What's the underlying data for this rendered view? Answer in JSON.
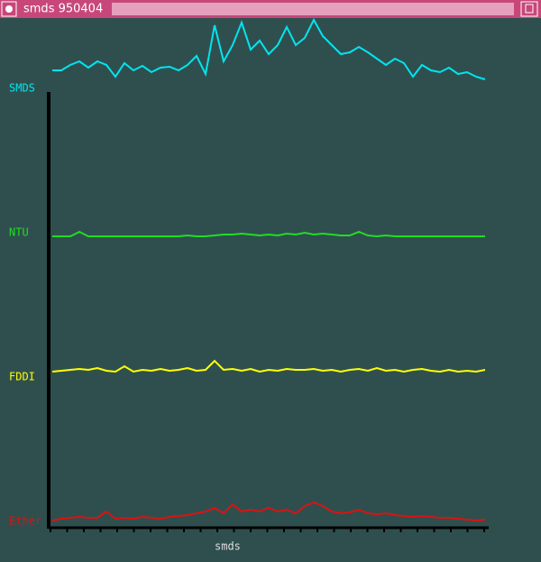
{
  "window": {
    "title": "smds 950404"
  },
  "chart_data": {
    "type": "line",
    "xlabel": "smds",
    "series": [
      {
        "name": "SMDS",
        "color": "#00e5ee",
        "values": [
          4,
          4,
          10,
          14,
          7,
          14,
          10,
          -3,
          12,
          4,
          9,
          2,
          7,
          8,
          4,
          10,
          20,
          0,
          54,
          14,
          32,
          57,
          27,
          37,
          22,
          32,
          52,
          32,
          40,
          60,
          42,
          32,
          22,
          24,
          30,
          24,
          17,
          10,
          17,
          12,
          -3,
          10,
          4,
          2,
          7,
          0,
          2,
          -3,
          -6
        ]
      },
      {
        "name": "NTU",
        "color": "#22dd22",
        "values": [
          0,
          0,
          0,
          5,
          0,
          0,
          0,
          0,
          0,
          0,
          0,
          0,
          0,
          0,
          0,
          1,
          0,
          0,
          1,
          2,
          2,
          3,
          2,
          1,
          2,
          1,
          3,
          2,
          4,
          2,
          3,
          2,
          1,
          1,
          5,
          1,
          0,
          1,
          0,
          0,
          0,
          0,
          0,
          0,
          0,
          0,
          0,
          0,
          0
        ]
      },
      {
        "name": "FDDI",
        "color": "#ffff00",
        "values": [
          0,
          1,
          2,
          3,
          2,
          4,
          1,
          0,
          6,
          0,
          2,
          1,
          3,
          1,
          2,
          4,
          1,
          2,
          12,
          2,
          3,
          1,
          3,
          0,
          2,
          1,
          3,
          2,
          2,
          3,
          1,
          2,
          0,
          2,
          3,
          1,
          4,
          1,
          2,
          0,
          2,
          3,
          1,
          0,
          2,
          0,
          1,
          0,
          2
        ]
      },
      {
        "name": "Ether",
        "color": "#dd1111",
        "values": [
          0,
          2,
          3,
          4,
          3,
          3,
          10,
          2,
          3,
          2,
          4,
          3,
          2,
          4,
          5,
          6,
          8,
          10,
          14,
          8,
          18,
          10,
          12,
          10,
          14,
          10,
          12,
          8,
          16,
          20,
          16,
          10,
          8,
          9,
          12,
          8,
          7,
          8,
          6,
          5,
          4,
          5,
          4,
          3,
          3,
          2,
          1,
          0,
          1
        ]
      }
    ]
  }
}
